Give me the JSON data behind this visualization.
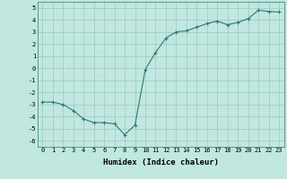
{
  "x": [
    0,
    1,
    2,
    3,
    4,
    5,
    6,
    7,
    8,
    9,
    10,
    11,
    12,
    13,
    14,
    15,
    16,
    17,
    18,
    19,
    20,
    21,
    22,
    23
  ],
  "y": [
    -2.8,
    -2.8,
    -3.0,
    -3.5,
    -4.2,
    -4.5,
    -4.5,
    -4.6,
    -5.5,
    -4.7,
    -0.1,
    1.3,
    2.5,
    3.0,
    3.1,
    3.4,
    3.7,
    3.9,
    3.6,
    3.8,
    4.1,
    4.8,
    4.7,
    4.65
  ],
  "line_color": "#2d7a6e",
  "bg_color": "#c0e8e0",
  "grid_color": "#9ac8c0",
  "xlabel": "Humidex (Indice chaleur)",
  "xlim": [
    -0.5,
    23.5
  ],
  "ylim": [
    -6.5,
    5.5
  ],
  "yticks": [
    -6,
    -5,
    -4,
    -3,
    -2,
    -1,
    0,
    1,
    2,
    3,
    4,
    5
  ],
  "xticks": [
    0,
    1,
    2,
    3,
    4,
    5,
    6,
    7,
    8,
    9,
    10,
    11,
    12,
    13,
    14,
    15,
    16,
    17,
    18,
    19,
    20,
    21,
    22,
    23
  ],
  "tick_fontsize": 5.0,
  "xlabel_fontsize": 6.5,
  "marker": "+"
}
